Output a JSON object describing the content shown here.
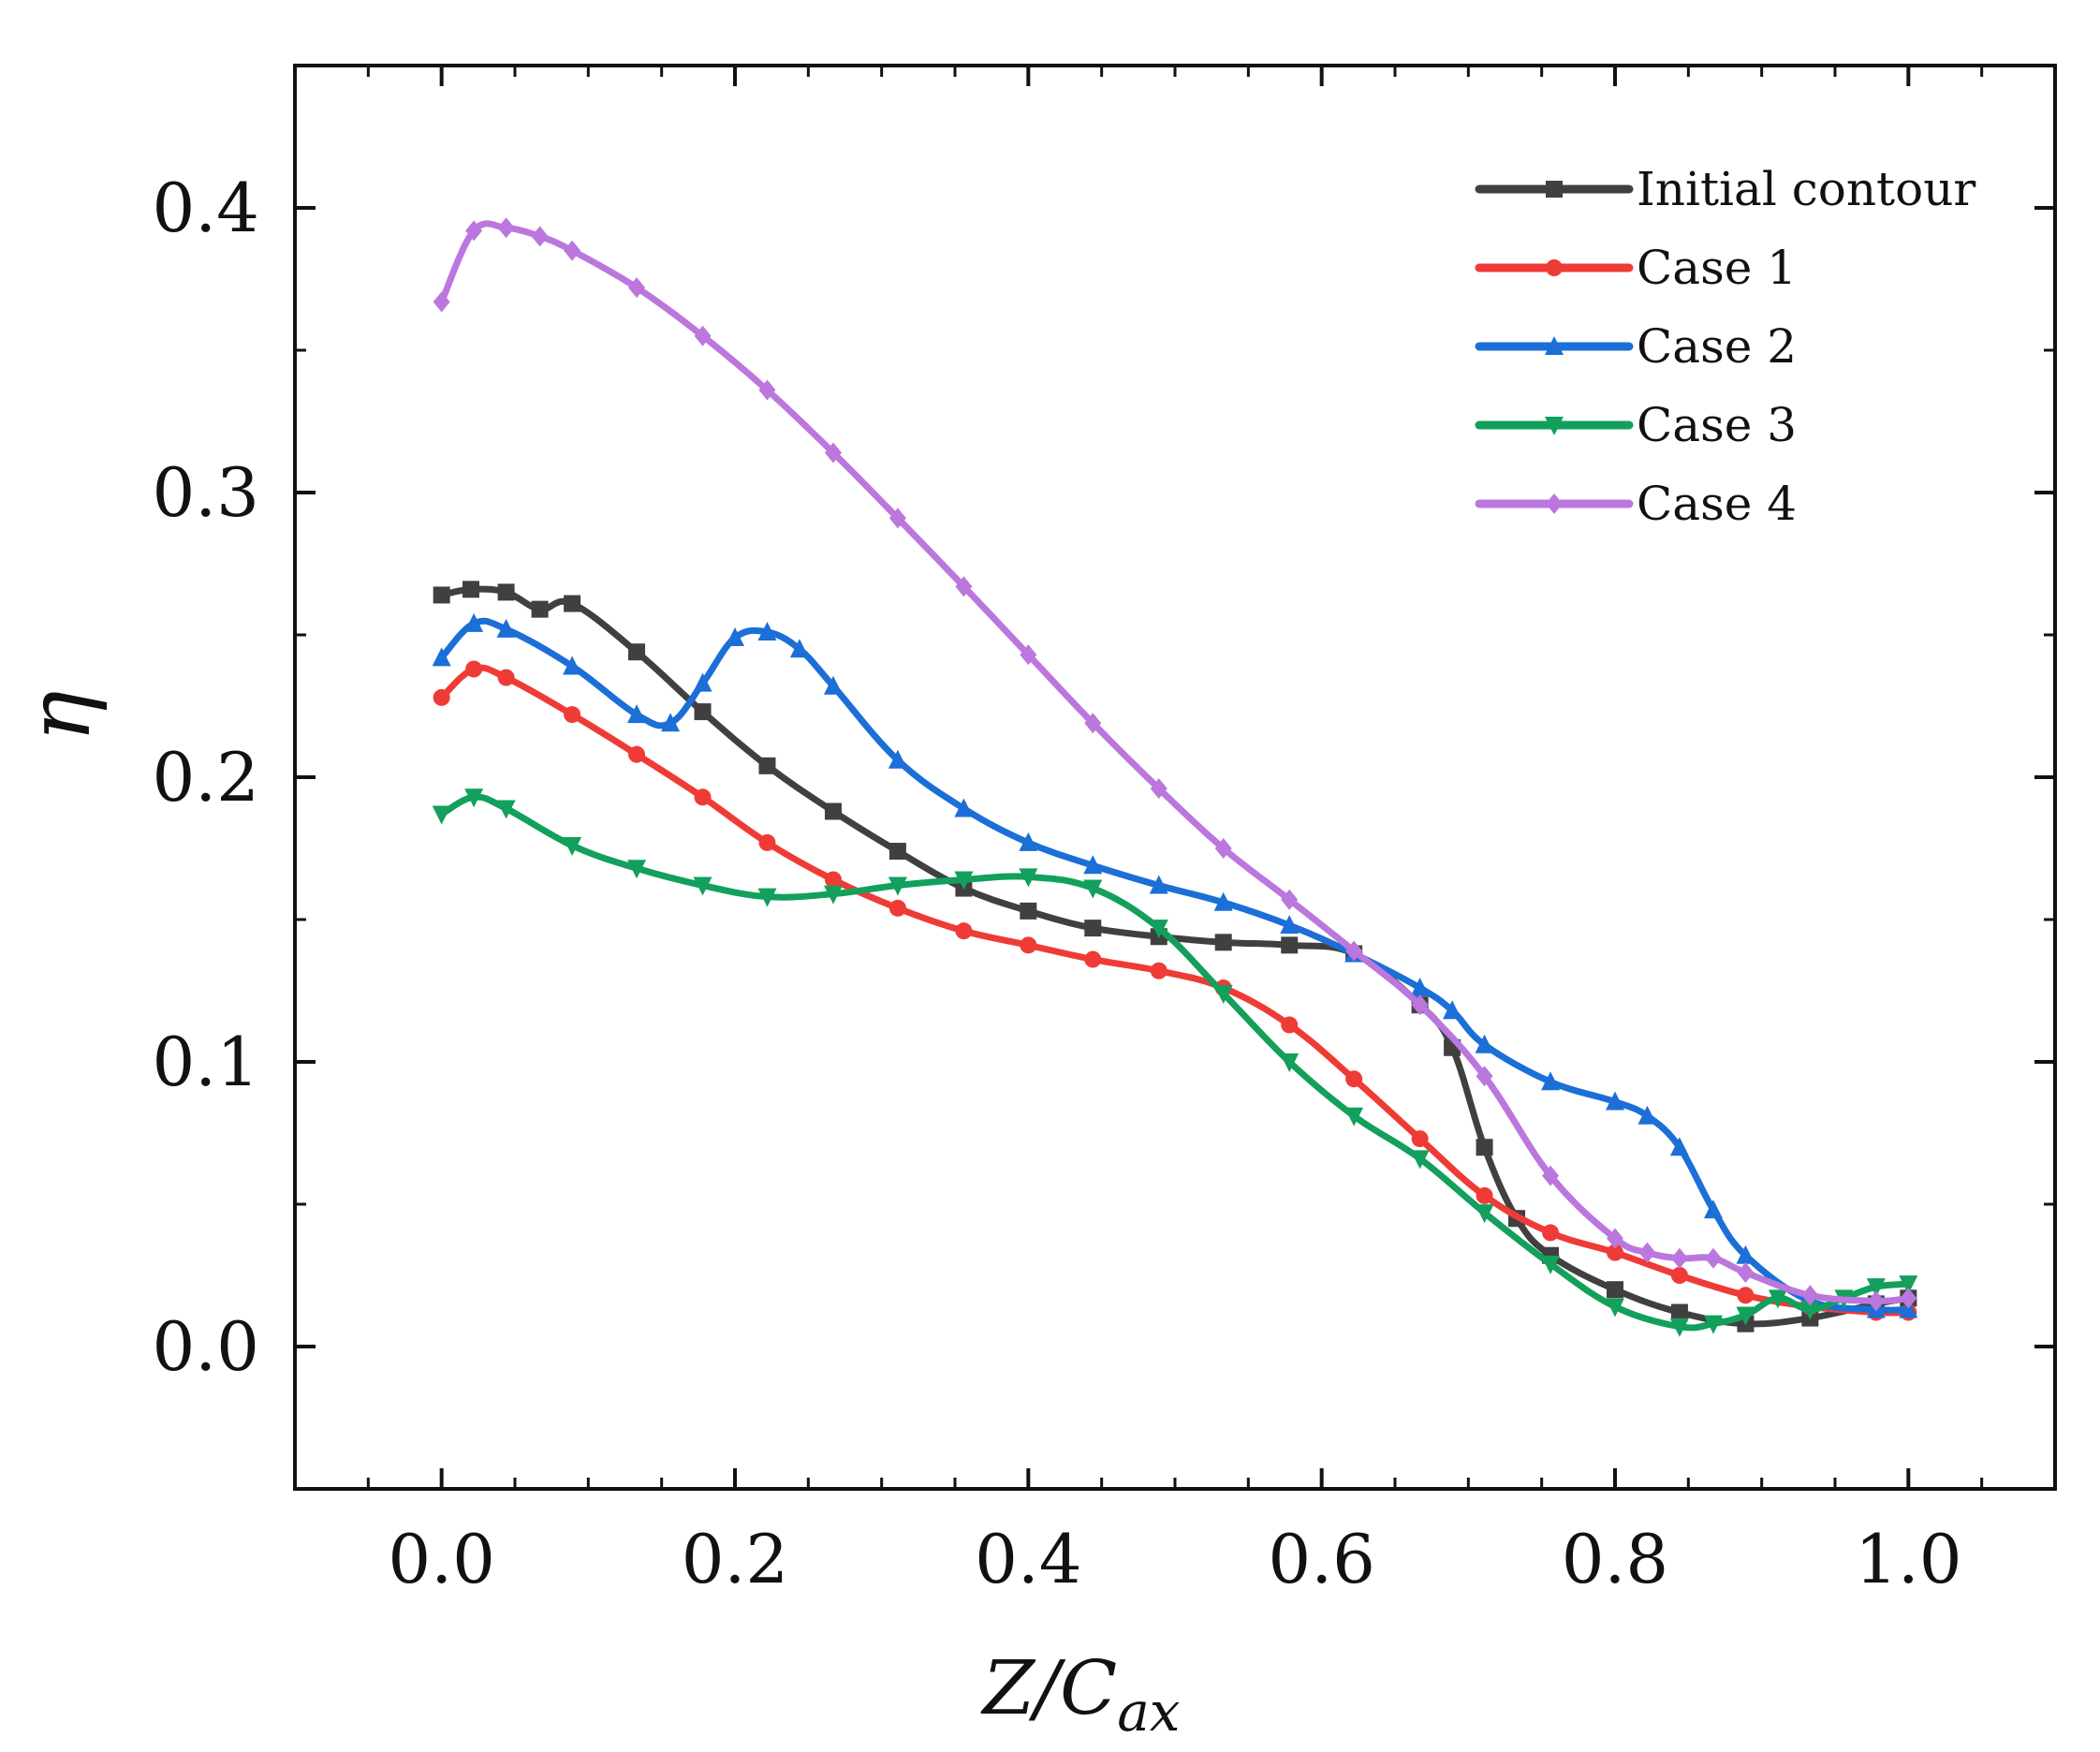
{
  "chart_data": {
    "type": "line",
    "title": "",
    "xlabel": "Z/C",
    "xlabel_subscript": "ax",
    "ylabel": "η",
    "xlim": [
      -0.1,
      1.1
    ],
    "ylim": [
      -0.05,
      0.45
    ],
    "xticks": [
      0.0,
      0.2,
      0.4,
      0.6,
      0.8,
      1.0
    ],
    "xtick_labels": [
      "0.0",
      "0.2",
      "0.4",
      "0.6",
      "0.8",
      "1.0"
    ],
    "yticks": [
      0.0,
      0.1,
      0.2,
      0.3,
      0.4
    ],
    "ytick_labels": [
      "0.0",
      "0.1",
      "0.2",
      "0.3",
      "0.4"
    ],
    "grid": false,
    "legend_position": "top-right",
    "series": [
      {
        "name": "Initial contour",
        "color": "#404040",
        "marker": "square",
        "x": [
          0.0,
          0.02,
          0.044,
          0.067,
          0.089,
          0.133,
          0.178,
          0.222,
          0.267,
          0.311,
          0.356,
          0.4,
          0.444,
          0.489,
          0.533,
          0.578,
          0.622,
          0.667,
          0.689,
          0.711,
          0.733,
          0.756,
          0.8,
          0.844,
          0.889,
          0.933,
          0.978,
          1.0
        ],
        "y": [
          0.264,
          0.266,
          0.265,
          0.259,
          0.261,
          0.244,
          0.223,
          0.204,
          0.188,
          0.174,
          0.161,
          0.153,
          0.147,
          0.144,
          0.142,
          0.141,
          0.138,
          0.12,
          0.105,
          0.07,
          0.045,
          0.032,
          0.02,
          0.012,
          0.008,
          0.01,
          0.015,
          0.017
        ]
      },
      {
        "name": "Case 1",
        "color": "#ef3b36",
        "marker": "circle",
        "x": [
          0.0,
          0.022,
          0.044,
          0.089,
          0.133,
          0.178,
          0.222,
          0.267,
          0.311,
          0.356,
          0.4,
          0.444,
          0.489,
          0.533,
          0.578,
          0.622,
          0.667,
          0.711,
          0.756,
          0.8,
          0.844,
          0.889,
          0.933,
          0.978,
          1.0
        ],
        "y": [
          0.228,
          0.238,
          0.235,
          0.222,
          0.208,
          0.193,
          0.177,
          0.164,
          0.154,
          0.146,
          0.141,
          0.136,
          0.132,
          0.126,
          0.113,
          0.094,
          0.073,
          0.053,
          0.04,
          0.033,
          0.025,
          0.018,
          0.014,
          0.012,
          0.012
        ]
      },
      {
        "name": "Case 2",
        "color": "#1b6fd6",
        "marker": "triangle-up",
        "x": [
          0.0,
          0.022,
          0.044,
          0.089,
          0.133,
          0.156,
          0.178,
          0.2,
          0.222,
          0.244,
          0.267,
          0.311,
          0.356,
          0.4,
          0.444,
          0.489,
          0.533,
          0.578,
          0.622,
          0.667,
          0.689,
          0.711,
          0.756,
          0.8,
          0.822,
          0.844,
          0.867,
          0.889,
          0.933,
          0.978,
          1.0
        ],
        "y": [
          0.242,
          0.254,
          0.252,
          0.239,
          0.222,
          0.219,
          0.233,
          0.249,
          0.251,
          0.245,
          0.232,
          0.206,
          0.189,
          0.177,
          0.169,
          0.162,
          0.156,
          0.148,
          0.138,
          0.126,
          0.118,
          0.106,
          0.093,
          0.086,
          0.081,
          0.07,
          0.048,
          0.032,
          0.016,
          0.013,
          0.013
        ]
      },
      {
        "name": "Case 3",
        "color": "#12a05c",
        "marker": "triangle-down",
        "x": [
          0.0,
          0.022,
          0.044,
          0.089,
          0.133,
          0.178,
          0.222,
          0.267,
          0.311,
          0.356,
          0.4,
          0.444,
          0.489,
          0.533,
          0.578,
          0.622,
          0.667,
          0.711,
          0.756,
          0.8,
          0.844,
          0.867,
          0.889,
          0.911,
          0.933,
          0.956,
          0.978,
          1.0
        ],
        "y": [
          0.187,
          0.193,
          0.189,
          0.176,
          0.168,
          0.162,
          0.158,
          0.159,
          0.162,
          0.164,
          0.165,
          0.161,
          0.147,
          0.124,
          0.1,
          0.081,
          0.066,
          0.047,
          0.029,
          0.014,
          0.007,
          0.008,
          0.011,
          0.017,
          0.013,
          0.017,
          0.021,
          0.022
        ]
      },
      {
        "name": "Case 4",
        "color": "#bb77dd",
        "marker": "diamond",
        "x": [
          0.0,
          0.022,
          0.044,
          0.067,
          0.089,
          0.133,
          0.178,
          0.222,
          0.267,
          0.311,
          0.356,
          0.4,
          0.444,
          0.489,
          0.533,
          0.578,
          0.622,
          0.667,
          0.711,
          0.756,
          0.8,
          0.822,
          0.844,
          0.867,
          0.889,
          0.933,
          0.978,
          1.0
        ],
        "y": [
          0.367,
          0.392,
          0.393,
          0.39,
          0.385,
          0.372,
          0.355,
          0.336,
          0.314,
          0.291,
          0.267,
          0.243,
          0.219,
          0.196,
          0.175,
          0.157,
          0.139,
          0.12,
          0.095,
          0.06,
          0.038,
          0.033,
          0.031,
          0.031,
          0.026,
          0.018,
          0.016,
          0.017
        ]
      }
    ]
  }
}
